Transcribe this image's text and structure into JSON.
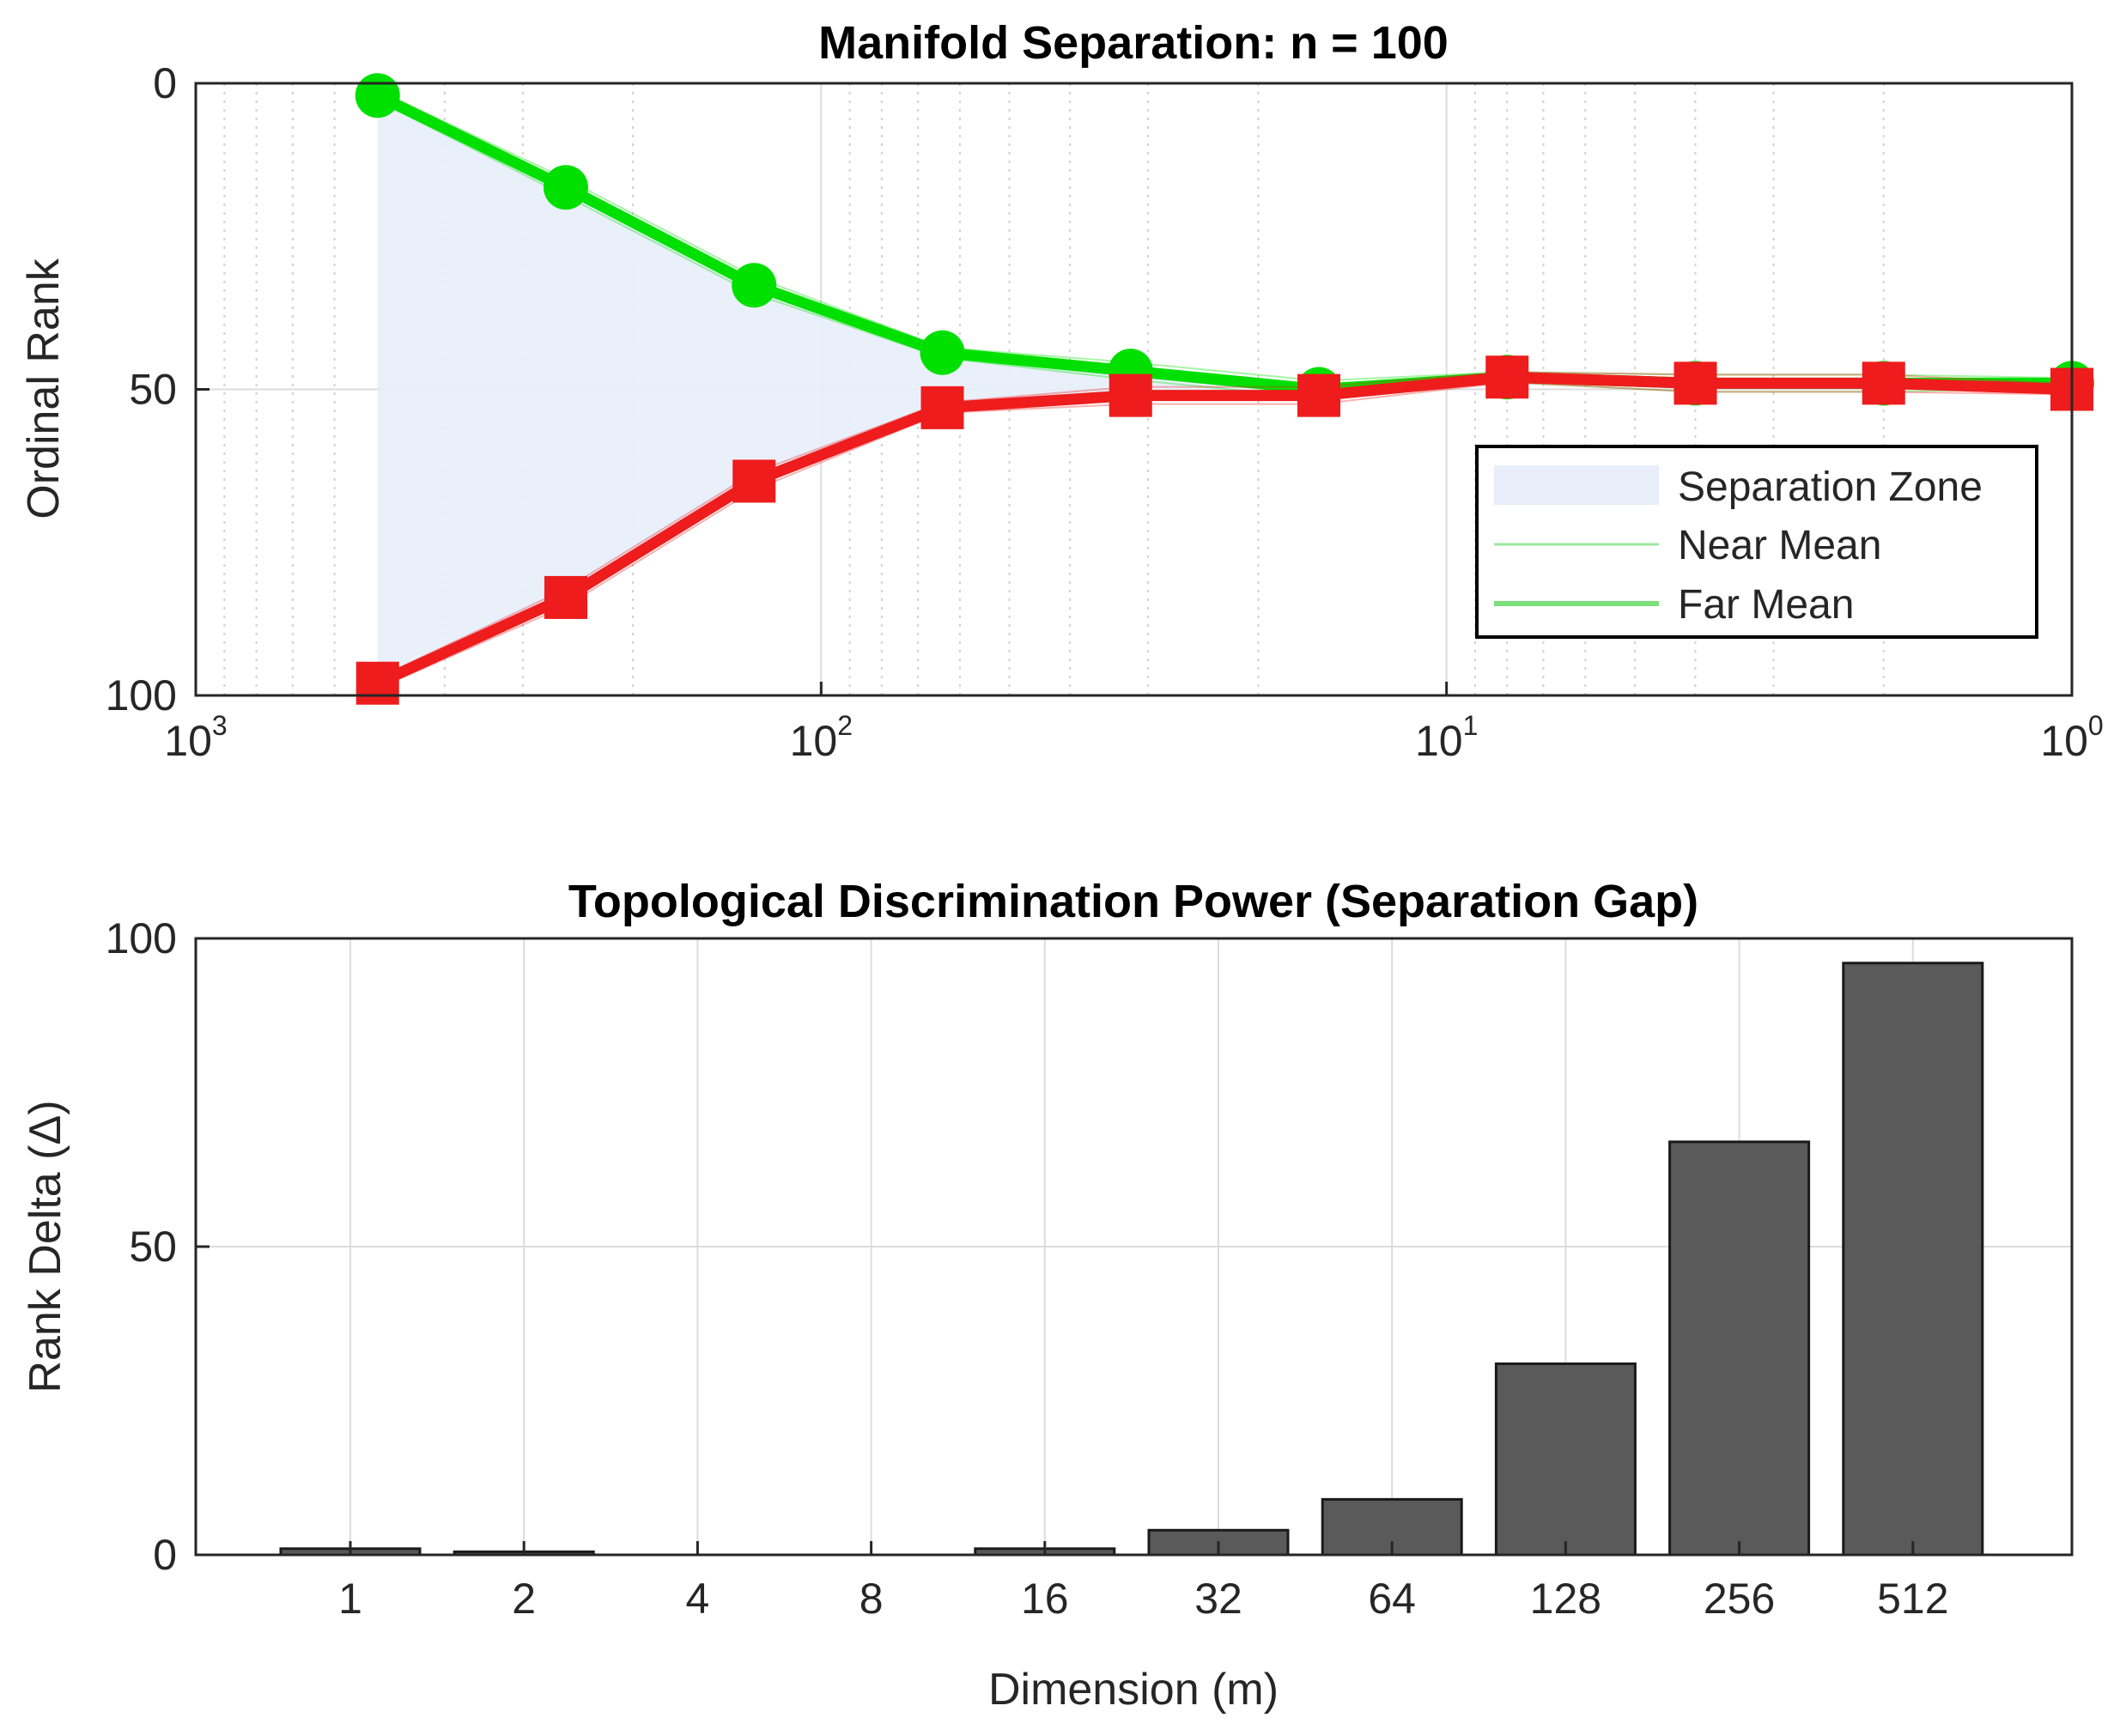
{
  "chart_data": [
    {
      "type": "line",
      "title": "Manifold Separation: n = 100",
      "xlabel": "",
      "ylabel": "Ordinal Rank",
      "x_scale": "log",
      "x_reversed": true,
      "y_reversed": true,
      "xlim": [
        1000,
        1
      ],
      "ylim": [
        0,
        100
      ],
      "x_ticks": [
        {
          "base": "10",
          "exp": "3",
          "value": 1000
        },
        {
          "base": "10",
          "exp": "2",
          "value": 100
        },
        {
          "base": "10",
          "exp": "1",
          "value": 10
        },
        {
          "base": "10",
          "exp": "0",
          "value": 1
        }
      ],
      "y_ticks": [
        "0",
        "50",
        "100"
      ],
      "grid": true,
      "legend_position": "right",
      "x": [
        512,
        256,
        128,
        64,
        32,
        16,
        8,
        4,
        2,
        1
      ],
      "series": [
        {
          "name": "Far Mean",
          "color": "#00e000",
          "marker": "circle",
          "values": [
            2,
            17,
            33,
            44,
            47,
            50,
            48,
            49,
            49,
            49
          ]
        },
        {
          "color": "#ee1c1c",
          "marker": "square",
          "values": [
            98,
            84,
            65,
            53,
            51,
            51,
            48,
            49,
            49,
            50
          ]
        }
      ],
      "legend": [
        {
          "label": "Separation Zone",
          "kind": "fill",
          "color": "#e8eef9"
        },
        {
          "label": "Near Mean",
          "kind": "thin-line",
          "color": "#9de69d"
        },
        {
          "label": "Far Mean",
          "kind": "thick-line",
          "color": "#7ae07a"
        }
      ]
    },
    {
      "type": "bar",
      "title": "Topological Discrimination Power (Separation Gap)",
      "xlabel": "Dimension (m)",
      "ylabel": "Rank Delta (Δ)",
      "ylim": [
        0,
        100
      ],
      "y_ticks": [
        "0",
        "50",
        "100"
      ],
      "grid": true,
      "categories": [
        "1",
        "2",
        "4",
        "8",
        "16",
        "32",
        "64",
        "128",
        "256",
        "512"
      ],
      "values": [
        1,
        0.5,
        0,
        0,
        1,
        4,
        9,
        31,
        67,
        96
      ],
      "bar_color": "#5a5a5a"
    }
  ]
}
